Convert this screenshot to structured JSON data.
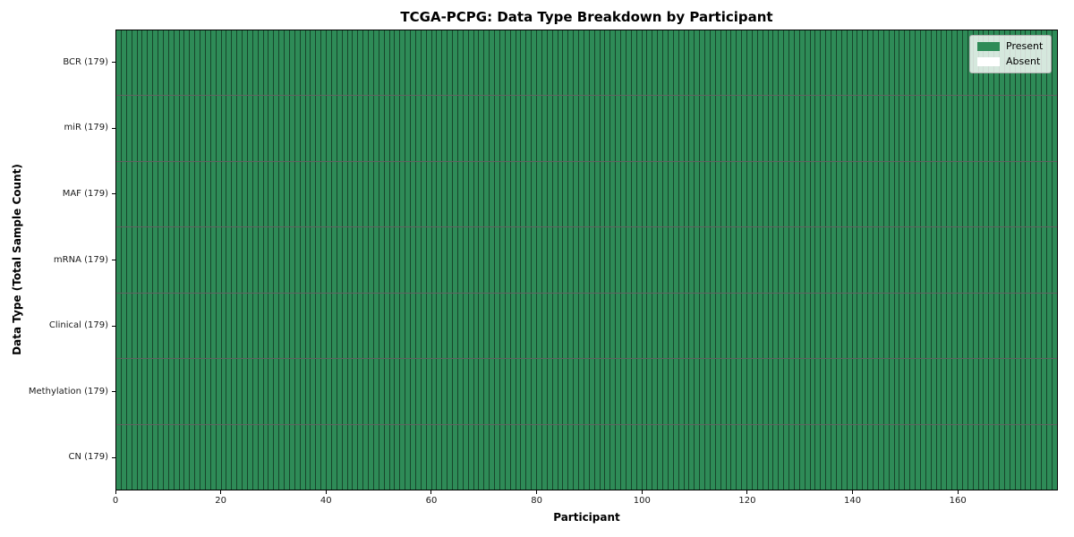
{
  "chart_data": {
    "type": "heatmap",
    "title": "TCGA-PCPG: Data Type Breakdown by Participant",
    "xlabel": "Participant",
    "ylabel": "Data Type (Total Sample Count)",
    "n_participants": 179,
    "x_range": [
      0,
      179
    ],
    "x_ticks": [
      0,
      20,
      40,
      60,
      80,
      100,
      120,
      140,
      160
    ],
    "rows": [
      {
        "label": "BCR (179)",
        "data_type": "BCR",
        "total_sample_count": 179,
        "present_count": 179,
        "absent_count": 0
      },
      {
        "label": "miR (179)",
        "data_type": "miR",
        "total_sample_count": 179,
        "present_count": 179,
        "absent_count": 0
      },
      {
        "label": "MAF (179)",
        "data_type": "MAF",
        "total_sample_count": 179,
        "present_count": 179,
        "absent_count": 0
      },
      {
        "label": "mRNA (179)",
        "data_type": "mRNA",
        "total_sample_count": 179,
        "present_count": 179,
        "absent_count": 0
      },
      {
        "label": "Clinical (179)",
        "data_type": "Clinical",
        "total_sample_count": 179,
        "present_count": 179,
        "absent_count": 0
      },
      {
        "label": "Methylation (179)",
        "data_type": "Methylation",
        "total_sample_count": 179,
        "present_count": 179,
        "absent_count": 0
      },
      {
        "label": "CN (179)",
        "data_type": "CN",
        "total_sample_count": 179,
        "present_count": 179,
        "absent_count": 0
      }
    ],
    "legend": {
      "position": "upper right",
      "entries": [
        {
          "label": "Present",
          "color": "#2e8b57"
        },
        {
          "label": "Absent",
          "color": "#ffffff"
        }
      ]
    },
    "colors": {
      "present": "#2e8b57",
      "absent": "#ffffff",
      "cell_edge": "rgba(0,0,0,0.5)",
      "plot_border": "#000000",
      "background": "#ffffff"
    },
    "grid": "per-cell edges visible",
    "notes": "All 179 participants have all 7 data types present"
  }
}
